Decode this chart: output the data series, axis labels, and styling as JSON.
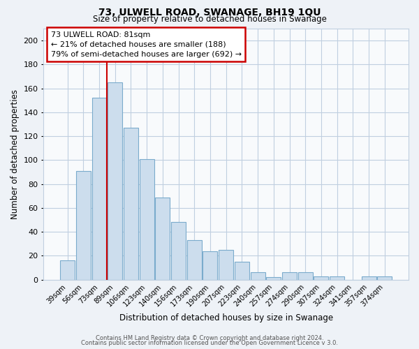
{
  "title": "73, ULWELL ROAD, SWANAGE, BH19 1QU",
  "subtitle": "Size of property relative to detached houses in Swanage",
  "xlabel": "Distribution of detached houses by size in Swanage",
  "ylabel": "Number of detached properties",
  "bar_labels": [
    "39sqm",
    "56sqm",
    "73sqm",
    "89sqm",
    "106sqm",
    "123sqm",
    "140sqm",
    "156sqm",
    "173sqm",
    "190sqm",
    "207sqm",
    "223sqm",
    "240sqm",
    "257sqm",
    "274sqm",
    "290sqm",
    "307sqm",
    "324sqm",
    "341sqm",
    "357sqm",
    "374sqm"
  ],
  "bar_values": [
    16,
    91,
    152,
    165,
    127,
    101,
    69,
    48,
    33,
    24,
    25,
    15,
    6,
    2,
    6,
    6,
    3,
    3,
    0,
    3,
    3
  ],
  "bar_color": "#ccdded",
  "bar_edge_color": "#7aabcc",
  "vline_x": 2.5,
  "vline_color": "#cc0000",
  "annotation_box_text": "73 ULWELL ROAD: 81sqm\n← 21% of detached houses are smaller (188)\n79% of semi-detached houses are larger (692) →",
  "annotation_box_color": "#cc0000",
  "ylim": [
    0,
    210
  ],
  "yticks": [
    0,
    20,
    40,
    60,
    80,
    100,
    120,
    140,
    160,
    180,
    200
  ],
  "footer1": "Contains HM Land Registry data © Crown copyright and database right 2024.",
  "footer2": "Contains public sector information licensed under the Open Government Licence v 3.0.",
  "bg_color": "#eef2f7",
  "plot_bg_color": "#f8fafc",
  "grid_color": "#c0cfe0"
}
